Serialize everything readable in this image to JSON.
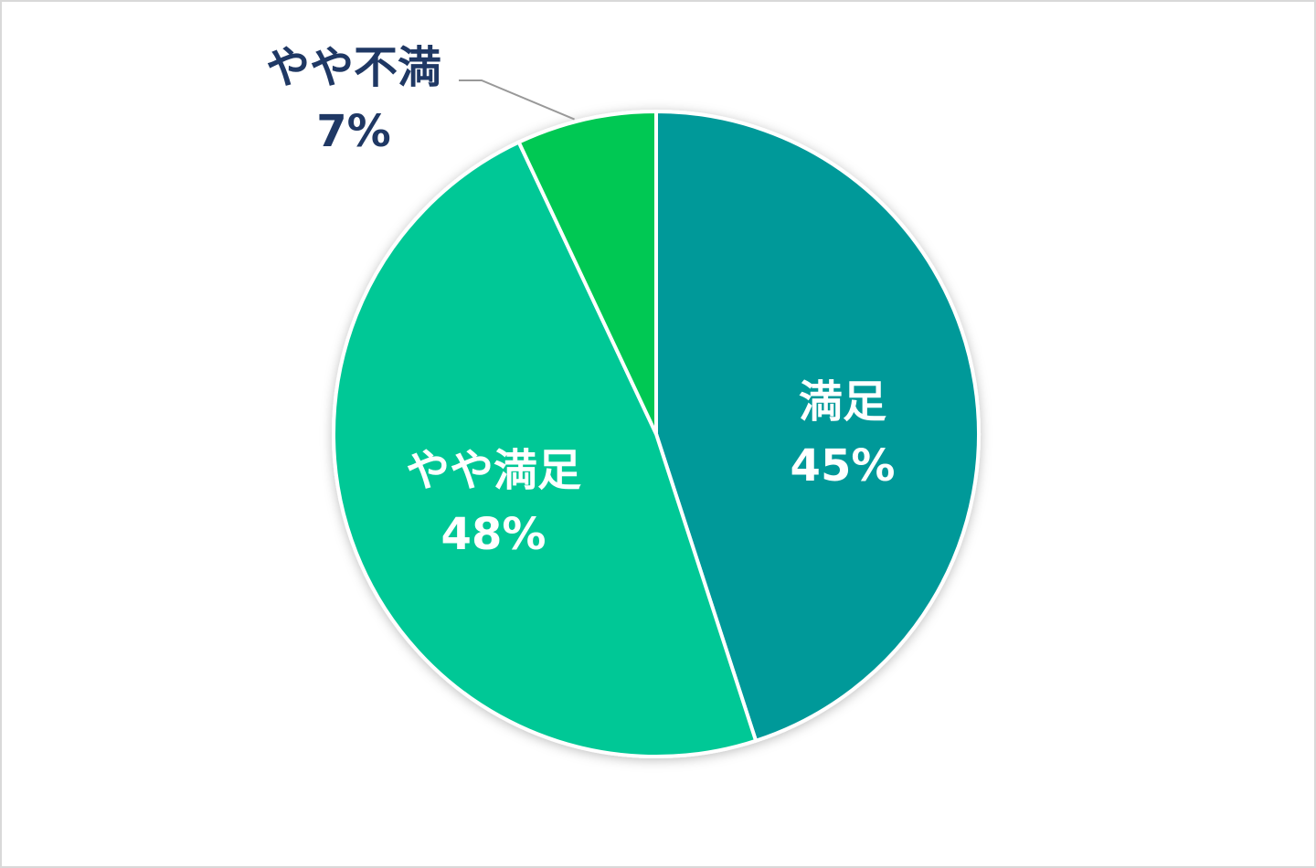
{
  "chart_data": {
    "type": "pie",
    "start_angle": "12 o'clock",
    "direction": "clockwise",
    "slices": [
      {
        "label": "満足",
        "value": 45,
        "value_label": "45%",
        "color": "#009999",
        "label_color": "#ffffff",
        "label_position": "inside"
      },
      {
        "label": "やや満足",
        "value": 48,
        "value_label": "48%",
        "color": "#00C896",
        "label_color": "#ffffff",
        "label_position": "inside"
      },
      {
        "label": "やや不満",
        "value": 7,
        "value_label": "7%",
        "color": "#00C853",
        "label_color": "#1F3864",
        "label_position": "outside-with-leader"
      }
    ]
  }
}
